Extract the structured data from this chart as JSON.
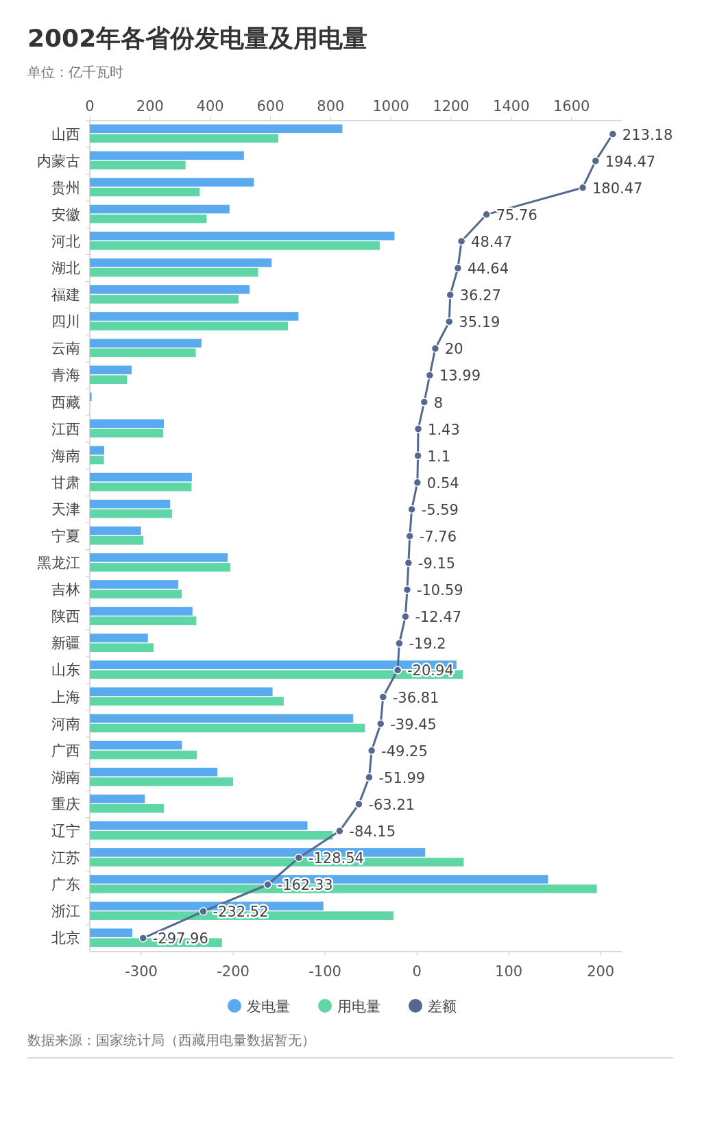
{
  "chart_data": {
    "type": "bar",
    "orientation": "horizontal",
    "title": "2002年各省份发电量及用电量",
    "subtitle": "单位：亿千瓦时",
    "categories": [
      "山西",
      "内蒙古",
      "贵州",
      "安徽",
      "河北",
      "湖北",
      "福建",
      "四川",
      "云南",
      "青海",
      "西藏",
      "江西",
      "海南",
      "甘肃",
      "天津",
      "宁夏",
      "黑龙江",
      "吉林",
      "陕西",
      "新疆",
      "山东",
      "上海",
      "河南",
      "广西",
      "湖南",
      "重庆",
      "辽宁",
      "江苏",
      "广东",
      "浙江",
      "北京"
    ],
    "series": [
      {
        "name": "发电量",
        "type": "bar",
        "color": "#5aaaf0",
        "values": [
          839,
          512,
          545,
          464,
          1012,
          604,
          531,
          693,
          371,
          139,
          6,
          246,
          48,
          339,
          267,
          170,
          458,
          294,
          341,
          193,
          1218,
          607,
          875,
          306,
          424,
          183,
          723,
          1114,
          1522,
          776,
          141
        ]
      },
      {
        "name": "用电量",
        "type": "bar",
        "color": "#5fd6a6",
        "values": [
          626,
          318,
          365,
          388,
          963,
          559,
          494,
          658,
          352,
          124,
          null,
          244,
          47,
          338,
          273,
          178,
          467,
          305,
          354,
          212,
          1239,
          644,
          914,
          355,
          476,
          246,
          807,
          1242,
          1684,
          1009,
          439
        ]
      },
      {
        "name": "差额",
        "type": "line",
        "axis": "x2",
        "color": "#55688f",
        "values": [
          213.18,
          194.47,
          180.47,
          75.76,
          48.47,
          44.64,
          36.27,
          35.19,
          20,
          13.99,
          8,
          1.43,
          1.1,
          0.54,
          -5.59,
          -7.76,
          -9.15,
          -10.59,
          -12.47,
          -19.2,
          -20.94,
          -36.81,
          -39.45,
          -49.25,
          -51.99,
          -63.21,
          -84.15,
          -128.54,
          -162.33,
          -232.52,
          -297.96
        ],
        "value_labels": [
          "213.18",
          "194.47",
          "180.47",
          "75.76",
          "48.47",
          "44.64",
          "36.27",
          "35.19",
          "20",
          "13.99",
          "8",
          "1.43",
          "1.1",
          "0.54",
          "-5.59",
          "-7.76",
          "-9.15",
          "-10.59",
          "-12.47",
          "-19.2",
          "-20.94",
          "-36.81",
          "-39.45",
          "-49.25",
          "-51.99",
          "-63.21",
          "-84.15",
          "-128.54",
          "-162.33",
          "-232.52",
          "-297.96"
        ]
      }
    ],
    "xlim": [
      0,
      1767
    ],
    "xticks": [
      0,
      200,
      400,
      600,
      800,
      1000,
      1200,
      1400,
      1600
    ],
    "x2lim": [
      -356,
      223
    ],
    "x2ticks": [
      -300,
      -200,
      -100,
      0,
      100,
      200
    ],
    "marker": "circle",
    "legend": "bottom",
    "grid": false,
    "annotations": [
      "数据来源：国家统计局（西藏用电量数据暂无）"
    ]
  }
}
